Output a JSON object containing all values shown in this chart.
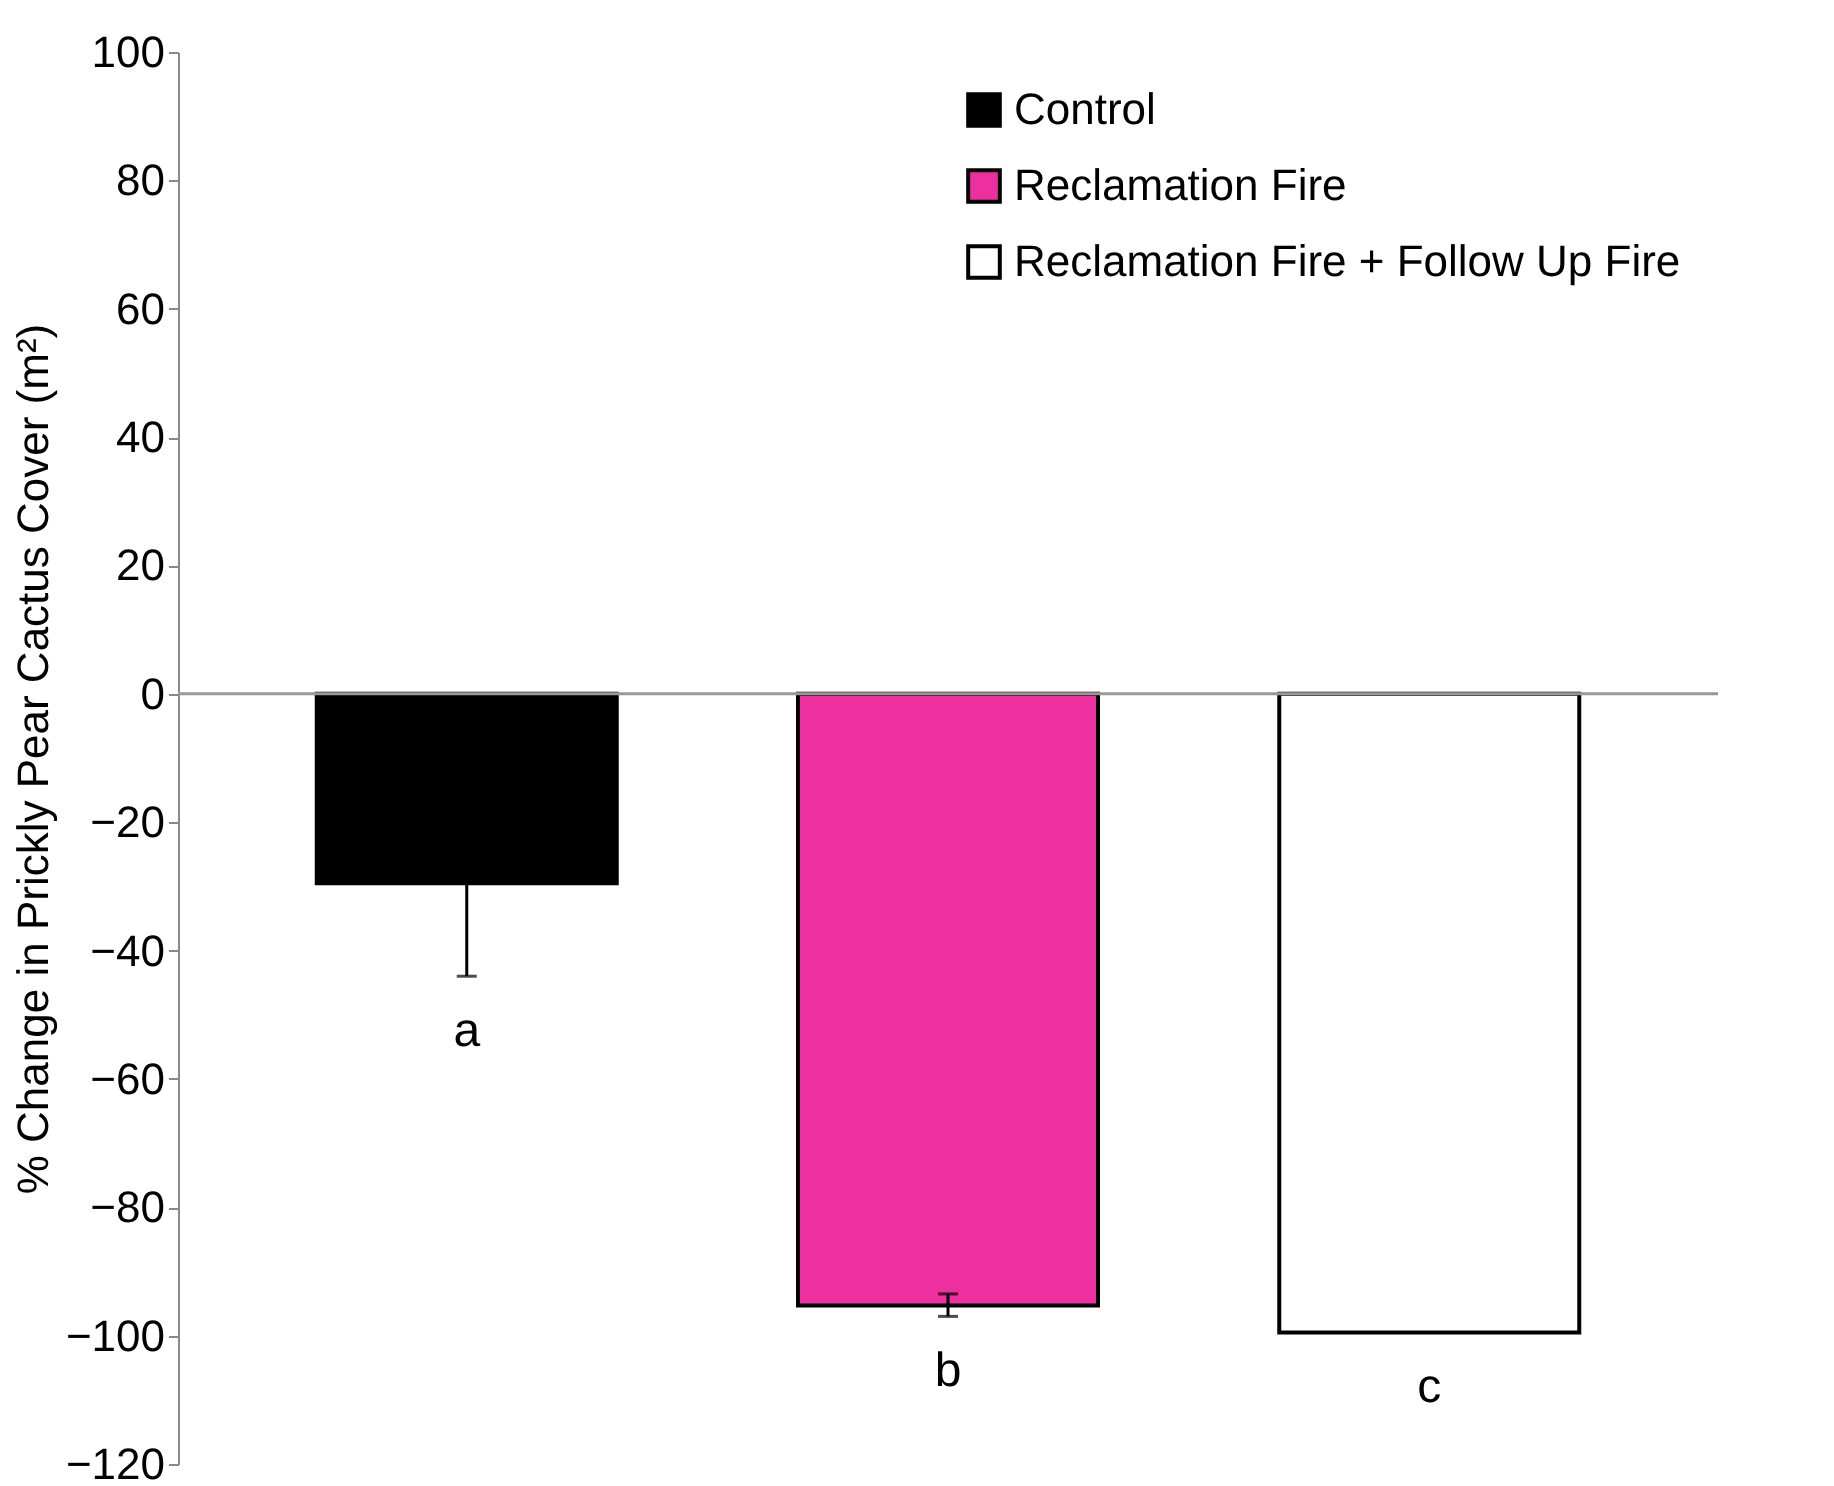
{
  "chart_data": {
    "type": "bar",
    "ylabel": "% Change in Prickly Pear Cactus Cover (m²)",
    "categories": [
      null,
      null,
      null
    ],
    "series": [
      {
        "name": "Control",
        "color": "#000000",
        "values": [
          -29.5,
          null,
          null
        ],
        "errors": [
          [
            -44,
            -29.5
          ],
          null,
          null
        ]
      },
      {
        "name": "Reclamation Fire",
        "color": "#ee2fa0",
        "values": [
          null,
          -95.3,
          null
        ],
        "errors": [
          null,
          [
            -97,
            -93.5
          ],
          null
        ]
      },
      {
        "name": "Reclamation Fire + Follow Up Fire",
        "color": "#ffffff",
        "values": [
          null,
          null,
          -99.5
        ]
      }
    ],
    "ylim": [
      -120,
      100
    ],
    "yticks": [
      -120,
      -100,
      -80,
      -60,
      -40,
      -20,
      0,
      20,
      40,
      60,
      80,
      100
    ],
    "ref_lines": [
      {
        "axis": "y",
        "value": 0,
        "color": "#999999"
      }
    ],
    "annotations": [
      "a",
      "b",
      "c"
    ],
    "grid": false,
    "legend": "top right"
  }
}
